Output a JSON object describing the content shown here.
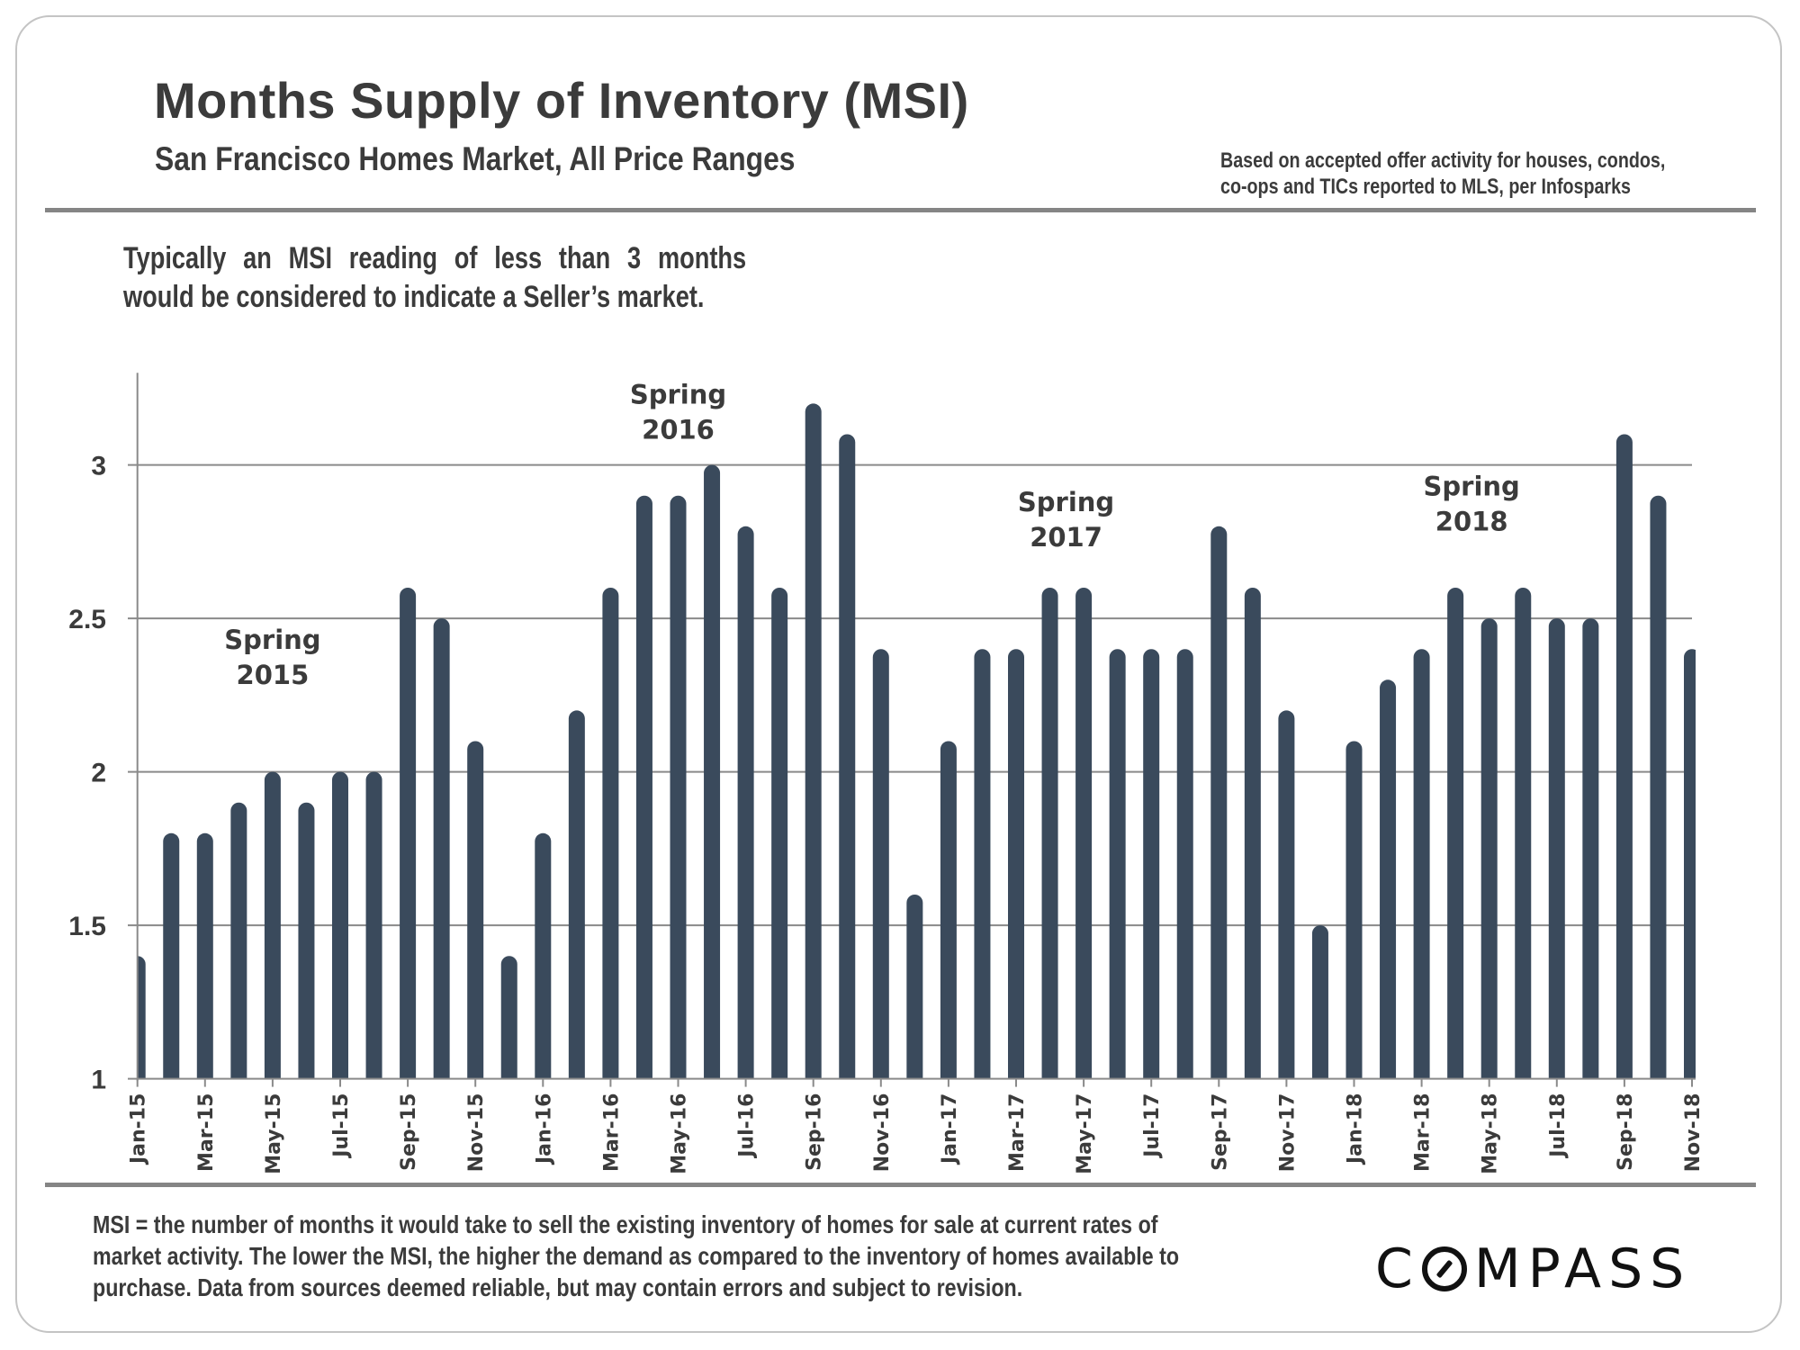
{
  "header": {
    "title": "Months Supply of Inventory (MSI)",
    "subtitle": "San Francisco Homes Market, All Price Ranges",
    "source_note": [
      "Based on accepted offer activity for houses, condos,",
      "co-ops and TICs reported  to MLS, per Infosparks"
    ]
  },
  "intro": [
    "Typically an MSI reading of less than 3 months",
    "would be considered to indicate a Seller’s market."
  ],
  "footer": {
    "text": [
      "MSI = the number of months it would take to sell the existing inventory of homes for sale at current rates of",
      "market activity.  The lower the MSI, the higher the demand as compared to the inventory of homes available to",
      "purchase. Data from sources deemed reliable, but may contain errors and subject to revision."
    ],
    "logo": {
      "before": "C",
      "after": "MPASS",
      "icon": "compass-o-slash-icon"
    }
  },
  "colors": {
    "bar": "#3a4a5c",
    "text": "#3b3b3b",
    "grid": "#8a8a8a",
    "rule": "#858585"
  },
  "chart_data": {
    "type": "bar",
    "title": "Months Supply of Inventory (MSI)",
    "subtitle": "San Francisco Homes Market, All Price Ranges",
    "xlabel": "",
    "ylabel": "",
    "ylim": [
      1,
      3.3
    ],
    "yticks": [
      1,
      1.5,
      2,
      2.5,
      3
    ],
    "ytick_labels": [
      "1",
      "1.5",
      "2",
      "2.5",
      "3"
    ],
    "grid": true,
    "legend": "none",
    "categories": [
      "Jan-15",
      "Feb-15",
      "Mar-15",
      "Apr-15",
      "May-15",
      "Jun-15",
      "Jul-15",
      "Aug-15",
      "Sep-15",
      "Oct-15",
      "Nov-15",
      "Dec-15",
      "Jan-16",
      "Feb-16",
      "Mar-16",
      "Apr-16",
      "May-16",
      "Jun-16",
      "Jul-16",
      "Aug-16",
      "Sep-16",
      "Oct-16",
      "Nov-16",
      "Dec-16",
      "Jan-17",
      "Feb-17",
      "Mar-17",
      "Apr-17",
      "May-17",
      "Jun-17",
      "Jul-17",
      "Aug-17",
      "Sep-17",
      "Oct-17",
      "Nov-17",
      "Dec-17",
      "Jan-18",
      "Feb-18",
      "Mar-18",
      "Apr-18",
      "May-18",
      "Jun-18",
      "Jul-18",
      "Aug-18",
      "Sep-18",
      "Oct-18",
      "Nov-18"
    ],
    "xtick_labels": [
      "Jan-15",
      "Mar-15",
      "May-15",
      "Jul-15",
      "Sep-15",
      "Nov-15",
      "Jan-16",
      "Mar-16",
      "May-16",
      "Jul-16",
      "Sep-16",
      "Nov-16",
      "Jan-17",
      "Mar-17",
      "May-17",
      "Jul-17",
      "Sep-17",
      "Nov-17",
      "Jan-18",
      "Mar-18",
      "May-18",
      "Jul-18",
      "Sep-18",
      "Nov-18"
    ],
    "values": [
      1.4,
      1.8,
      1.8,
      1.9,
      2.0,
      1.9,
      2.0,
      2.0,
      2.6,
      2.5,
      2.1,
      1.4,
      1.8,
      2.2,
      2.6,
      2.9,
      2.9,
      3.0,
      2.8,
      2.6,
      3.2,
      3.1,
      2.4,
      1.6,
      2.1,
      2.4,
      2.4,
      2.6,
      2.6,
      2.4,
      2.4,
      2.4,
      2.8,
      2.6,
      2.2,
      1.5,
      2.1,
      2.3,
      2.4,
      2.6,
      2.5,
      2.6,
      2.5,
      2.5,
      3.1,
      2.9,
      2.4
    ],
    "annotations": [
      {
        "lines": [
          "Spring",
          "2015"
        ],
        "near": "May-15",
        "level": 2.4
      },
      {
        "lines": [
          "Spring",
          "2016"
        ],
        "near": "May-16",
        "level": 3.2
      },
      {
        "lines": [
          "Spring",
          "2017"
        ],
        "near": "Apr-17",
        "level": 2.85
      },
      {
        "lines": [
          "Spring",
          "2018"
        ],
        "near": "Apr-18",
        "level": 2.9
      }
    ]
  }
}
